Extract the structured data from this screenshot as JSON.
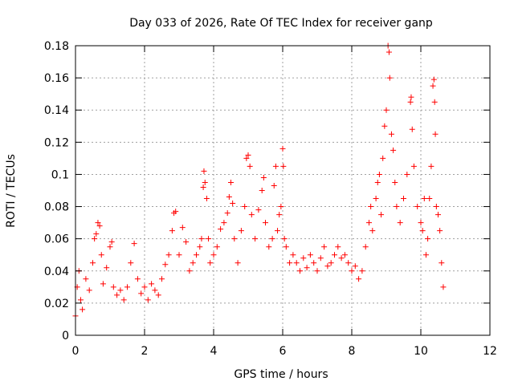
{
  "chart_data": {
    "type": "scatter",
    "title": "Day 033 of 2026, Rate Of TEC Index for receiver ganp",
    "xlabel": "GPS time / hours",
    "ylabel": "ROTI / TECUs",
    "xlim": [
      0,
      12
    ],
    "ylim": [
      0,
      0.18
    ],
    "xticks": [
      0,
      2,
      4,
      6,
      8,
      10,
      12
    ],
    "xtick_labels": [
      "0",
      "2",
      "4",
      "6",
      "8",
      "10",
      "12"
    ],
    "yticks": [
      0,
      0.02,
      0.04,
      0.06,
      0.08,
      0.1,
      0.12,
      0.14,
      0.16,
      0.18
    ],
    "ytick_labels": [
      "0",
      "0.02",
      "0.04",
      "0.06",
      "0.08",
      "0.1",
      "0.12",
      "0.14",
      "0.16",
      "0.18"
    ],
    "grid": true,
    "marker": "+",
    "color": "#ff0000",
    "series": [
      {
        "name": "ROTI",
        "points": [
          [
            0.0,
            0.012
          ],
          [
            0.05,
            0.03
          ],
          [
            0.1,
            0.04
          ],
          [
            0.15,
            0.022
          ],
          [
            0.2,
            0.016
          ],
          [
            0.3,
            0.035
          ],
          [
            0.4,
            0.028
          ],
          [
            0.5,
            0.045
          ],
          [
            0.55,
            0.06
          ],
          [
            0.6,
            0.063
          ],
          [
            0.65,
            0.07
          ],
          [
            0.7,
            0.068
          ],
          [
            0.75,
            0.05
          ],
          [
            0.8,
            0.032
          ],
          [
            0.9,
            0.042
          ],
          [
            1.0,
            0.055
          ],
          [
            1.05,
            0.058
          ],
          [
            1.1,
            0.03
          ],
          [
            1.2,
            0.025
          ],
          [
            1.3,
            0.028
          ],
          [
            1.4,
            0.022
          ],
          [
            1.5,
            0.03
          ],
          [
            1.6,
            0.045
          ],
          [
            1.7,
            0.057
          ],
          [
            1.8,
            0.035
          ],
          [
            1.9,
            0.026
          ],
          [
            2.0,
            0.03
          ],
          [
            2.1,
            0.022
          ],
          [
            2.2,
            0.032
          ],
          [
            2.3,
            0.028
          ],
          [
            2.4,
            0.025
          ],
          [
            2.5,
            0.035
          ],
          [
            2.6,
            0.044
          ],
          [
            2.7,
            0.05
          ],
          [
            2.8,
            0.065
          ],
          [
            2.85,
            0.076
          ],
          [
            2.9,
            0.077
          ],
          [
            3.0,
            0.05
          ],
          [
            3.1,
            0.067
          ],
          [
            3.2,
            0.058
          ],
          [
            3.3,
            0.04
          ],
          [
            3.4,
            0.045
          ],
          [
            3.5,
            0.05
          ],
          [
            3.6,
            0.055
          ],
          [
            3.65,
            0.06
          ],
          [
            3.7,
            0.092
          ],
          [
            3.72,
            0.102
          ],
          [
            3.75,
            0.095
          ],
          [
            3.8,
            0.085
          ],
          [
            3.85,
            0.06
          ],
          [
            3.9,
            0.045
          ],
          [
            4.0,
            0.05
          ],
          [
            4.1,
            0.055
          ],
          [
            4.2,
            0.066
          ],
          [
            4.3,
            0.07
          ],
          [
            4.4,
            0.076
          ],
          [
            4.45,
            0.086
          ],
          [
            4.5,
            0.095
          ],
          [
            4.55,
            0.082
          ],
          [
            4.6,
            0.06
          ],
          [
            4.7,
            0.045
          ],
          [
            4.8,
            0.065
          ],
          [
            4.9,
            0.08
          ],
          [
            4.95,
            0.11
          ],
          [
            5.0,
            0.112
          ],
          [
            5.05,
            0.105
          ],
          [
            5.1,
            0.075
          ],
          [
            5.2,
            0.06
          ],
          [
            5.3,
            0.078
          ],
          [
            5.4,
            0.09
          ],
          [
            5.45,
            0.098
          ],
          [
            5.5,
            0.07
          ],
          [
            5.6,
            0.055
          ],
          [
            5.7,
            0.06
          ],
          [
            5.75,
            0.093
          ],
          [
            5.8,
            0.105
          ],
          [
            5.85,
            0.065
          ],
          [
            5.9,
            0.075
          ],
          [
            5.95,
            0.08
          ],
          [
            6.0,
            0.116
          ],
          [
            6.02,
            0.105
          ],
          [
            6.05,
            0.06
          ],
          [
            6.1,
            0.055
          ],
          [
            6.2,
            0.045
          ],
          [
            6.3,
            0.05
          ],
          [
            6.4,
            0.045
          ],
          [
            6.5,
            0.04
          ],
          [
            6.6,
            0.048
          ],
          [
            6.7,
            0.042
          ],
          [
            6.8,
            0.05
          ],
          [
            6.9,
            0.045
          ],
          [
            7.0,
            0.04
          ],
          [
            7.1,
            0.048
          ],
          [
            7.2,
            0.055
          ],
          [
            7.3,
            0.043
          ],
          [
            7.4,
            0.045
          ],
          [
            7.5,
            0.05
          ],
          [
            7.6,
            0.055
          ],
          [
            7.7,
            0.048
          ],
          [
            7.8,
            0.05
          ],
          [
            7.9,
            0.045
          ],
          [
            8.0,
            0.04
          ],
          [
            8.1,
            0.043
          ],
          [
            8.2,
            0.035
          ],
          [
            8.3,
            0.04
          ],
          [
            8.4,
            0.055
          ],
          [
            8.5,
            0.07
          ],
          [
            8.55,
            0.08
          ],
          [
            8.6,
            0.065
          ],
          [
            8.7,
            0.085
          ],
          [
            8.75,
            0.095
          ],
          [
            8.8,
            0.1
          ],
          [
            8.85,
            0.075
          ],
          [
            8.9,
            0.11
          ],
          [
            8.95,
            0.13
          ],
          [
            9.0,
            0.14
          ],
          [
            9.05,
            0.18
          ],
          [
            9.08,
            0.176
          ],
          [
            9.1,
            0.16
          ],
          [
            9.15,
            0.125
          ],
          [
            9.2,
            0.115
          ],
          [
            9.25,
            0.095
          ],
          [
            9.3,
            0.08
          ],
          [
            9.4,
            0.07
          ],
          [
            9.5,
            0.085
          ],
          [
            9.6,
            0.1
          ],
          [
            9.7,
            0.145
          ],
          [
            9.72,
            0.148
          ],
          [
            9.75,
            0.128
          ],
          [
            9.8,
            0.105
          ],
          [
            9.9,
            0.08
          ],
          [
            10.0,
            0.07
          ],
          [
            10.05,
            0.065
          ],
          [
            10.1,
            0.085
          ],
          [
            10.15,
            0.05
          ],
          [
            10.2,
            0.06
          ],
          [
            10.25,
            0.085
          ],
          [
            10.3,
            0.105
          ],
          [
            10.35,
            0.155
          ],
          [
            10.38,
            0.159
          ],
          [
            10.4,
            0.145
          ],
          [
            10.42,
            0.125
          ],
          [
            10.45,
            0.08
          ],
          [
            10.5,
            0.075
          ],
          [
            10.55,
            0.065
          ],
          [
            10.6,
            0.045
          ],
          [
            10.65,
            0.03
          ]
        ]
      }
    ]
  }
}
